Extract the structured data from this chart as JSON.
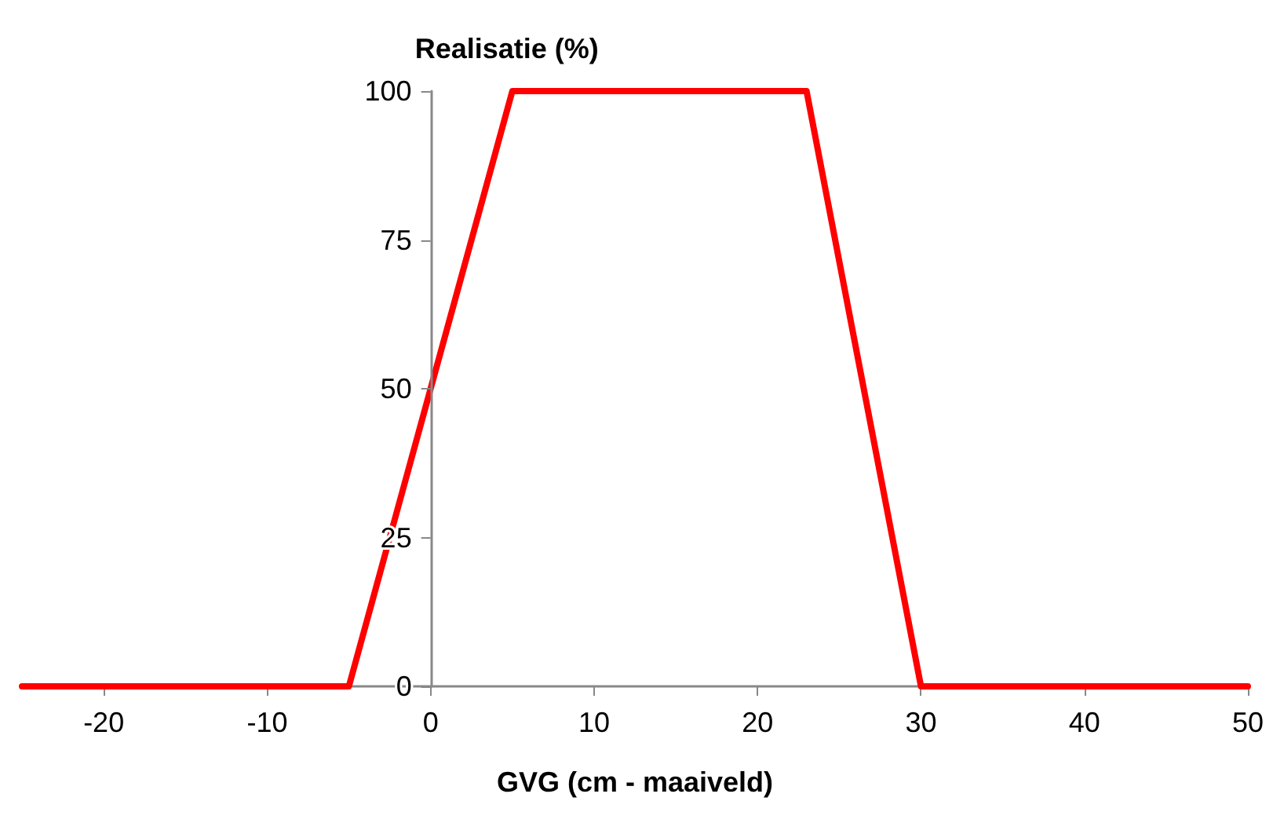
{
  "chart_data": {
    "type": "line",
    "xlabel": "GVG (cm - maaiveld)",
    "ylabel": "Realisatie (%)",
    "x": [
      -25,
      -5,
      5,
      23,
      30,
      50
    ],
    "series": [
      {
        "color": "#ff0000",
        "values": [
          0,
          0,
          100,
          100,
          0,
          0
        ]
      }
    ],
    "xlim": [
      -25,
      50
    ],
    "xticks": [
      -20,
      -10,
      0,
      10,
      20,
      30,
      40,
      50
    ],
    "ylim": [
      0,
      100
    ],
    "yticks": [
      0,
      25,
      50,
      75,
      100
    ],
    "grid": false,
    "marker": "none",
    "line_style": "solid"
  }
}
